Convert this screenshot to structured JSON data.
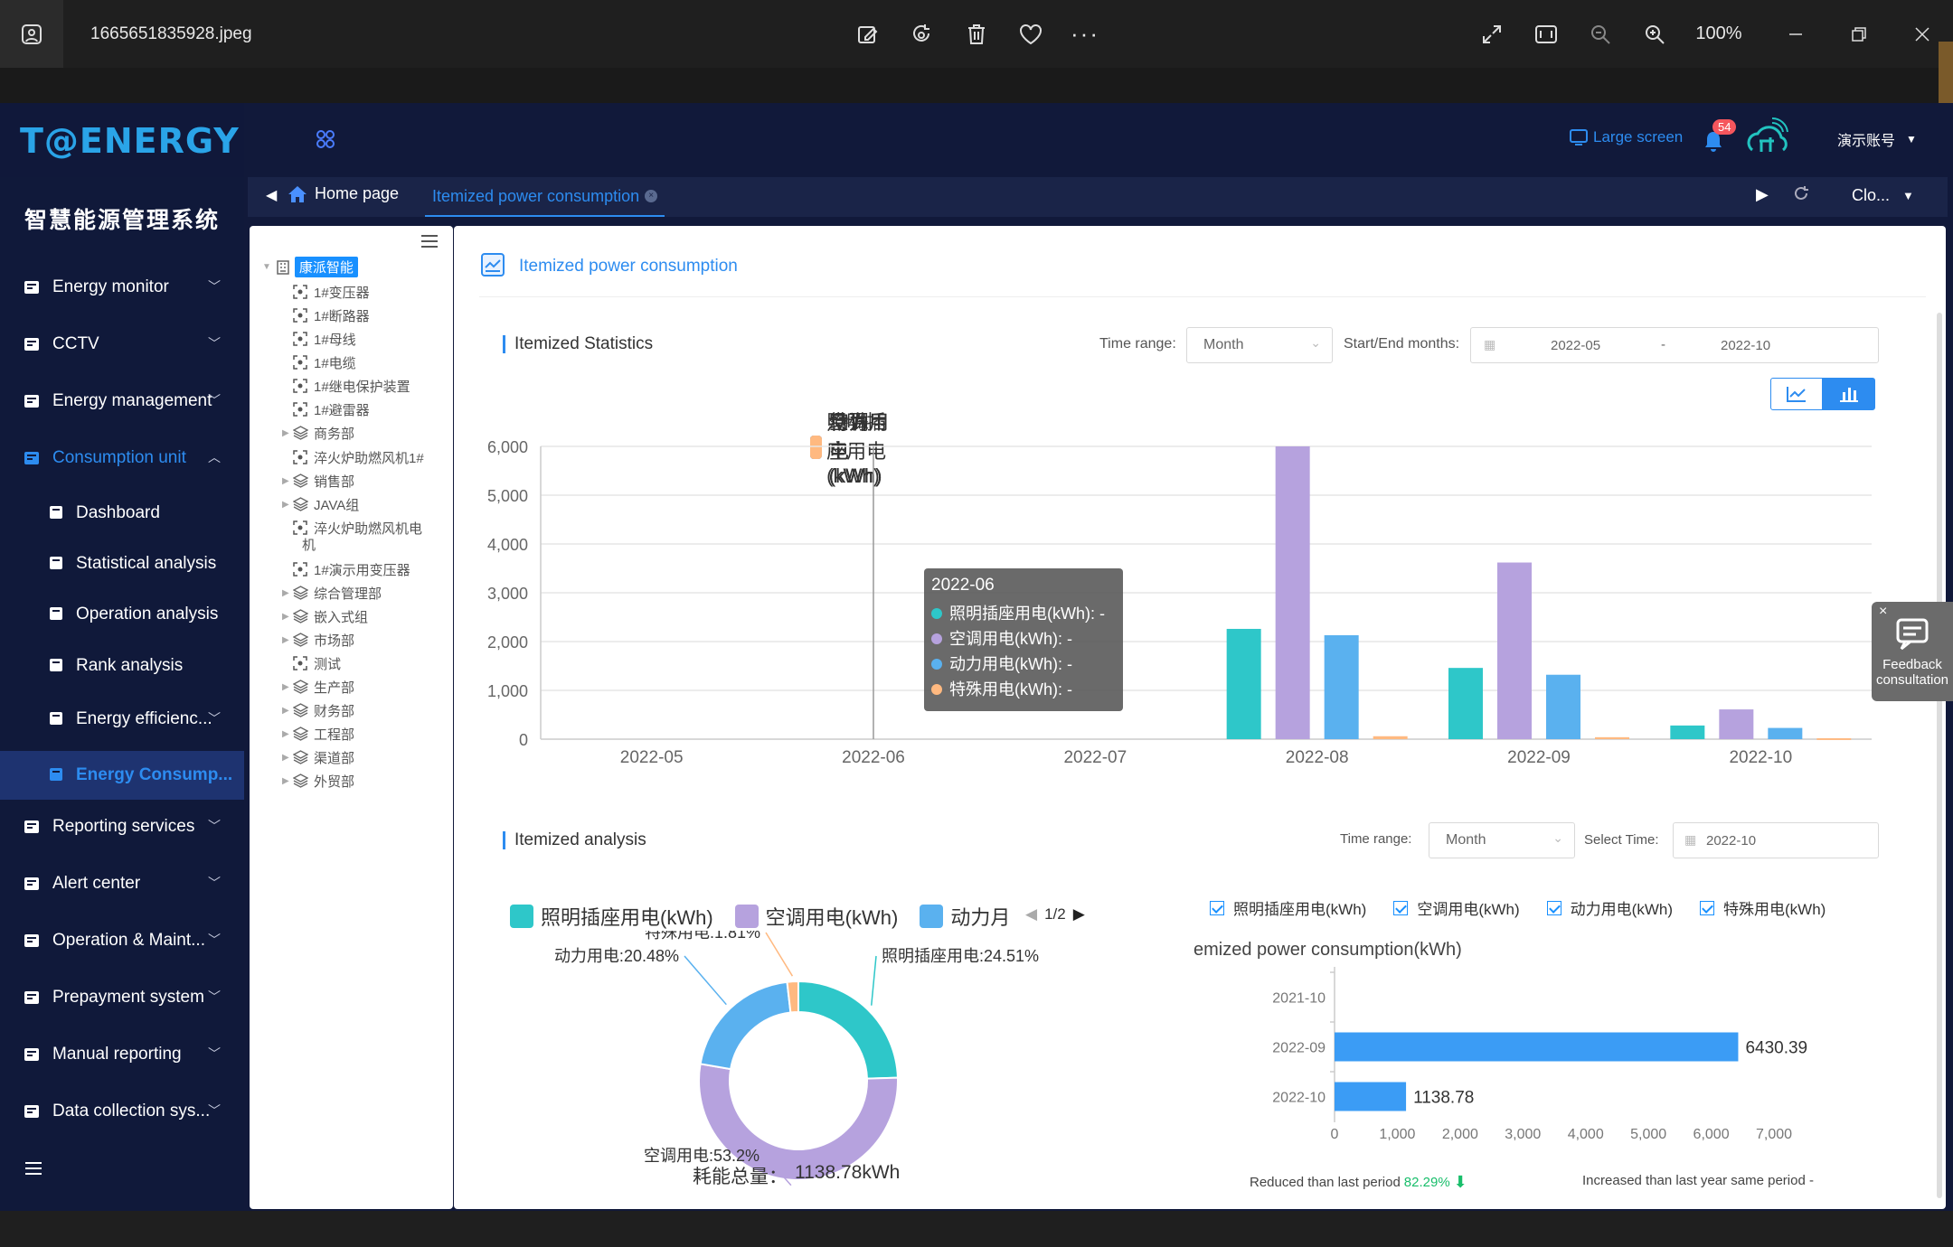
{
  "viewer": {
    "filename": "1665651835928.jpeg",
    "zoom": "100%",
    "icons": [
      "gallery-icon",
      "edit-image-icon",
      "rotate-icon",
      "delete-icon",
      "favorite-icon",
      "more-icon",
      "fullscreen-icon",
      "fit-icon",
      "zoom-out-icon",
      "zoom-in-icon",
      "minimize-icon",
      "restore-icon",
      "close-icon"
    ]
  },
  "app": {
    "logo_text": "T@ENERGY",
    "system_title": "智慧能源管理系统",
    "large_screen_label": "Large screen",
    "notification_count": "54",
    "account_label": "演示账号"
  },
  "sidebar": {
    "items": [
      {
        "label": "Energy monitor",
        "icon": "monitor-icon"
      },
      {
        "label": "CCTV",
        "icon": "camera-icon"
      },
      {
        "label": "Energy management",
        "icon": "chart-icon"
      },
      {
        "label": "Consumption unit",
        "icon": "unit-icon",
        "active": true
      },
      {
        "label": "Reporting services",
        "icon": "report-icon"
      },
      {
        "label": "Alert center",
        "icon": "alert-icon"
      },
      {
        "label": "Operation & Maint...",
        "icon": "maint-icon"
      },
      {
        "label": "Prepayment system",
        "icon": "prepay-icon"
      },
      {
        "label": "Manual reporting",
        "icon": "manual-icon"
      },
      {
        "label": "Data collection sys...",
        "icon": "data-icon"
      }
    ],
    "sub_items": [
      {
        "label": "Dashboard"
      },
      {
        "label": "Statistical analysis"
      },
      {
        "label": "Operation analysis"
      },
      {
        "label": "Rank analysis"
      },
      {
        "label": "Energy efficienc..."
      },
      {
        "label": "Energy Consump...",
        "active": true
      }
    ]
  },
  "tabs": {
    "home": "Home page",
    "active": "Itemized power consumption",
    "close_label": "Clo..."
  },
  "tree": {
    "root": "康派智能",
    "nodes": [
      {
        "label": "1#变压器",
        "type": "device"
      },
      {
        "label": "1#断路器",
        "type": "device"
      },
      {
        "label": "1#母线",
        "type": "device"
      },
      {
        "label": "1#电缆",
        "type": "device"
      },
      {
        "label": "1#继电保护装置",
        "type": "device"
      },
      {
        "label": "1#避雷器",
        "type": "device"
      },
      {
        "label": "商务部",
        "type": "group"
      },
      {
        "label": "淬火炉助燃风机1#",
        "type": "device"
      },
      {
        "label": "销售部",
        "type": "group"
      },
      {
        "label": "JAVA组",
        "type": "group"
      },
      {
        "label": "淬火炉助燃风机电",
        "type": "device"
      },
      {
        "label": "机",
        "type": "cont"
      },
      {
        "label": "1#演示用变压器",
        "type": "device"
      },
      {
        "label": "综合管理部",
        "type": "group"
      },
      {
        "label": "嵌入式组",
        "type": "group"
      },
      {
        "label": "市场部",
        "type": "group"
      },
      {
        "label": "测试",
        "type": "device"
      },
      {
        "label": "生产部",
        "type": "group"
      },
      {
        "label": "财务部",
        "type": "group"
      },
      {
        "label": "工程部",
        "type": "group"
      },
      {
        "label": "渠道部",
        "type": "group"
      },
      {
        "label": "外贸部",
        "type": "group"
      }
    ]
  },
  "page": {
    "title": "Itemized power consumption",
    "stats_title": "Itemized Statistics",
    "time_range_label": "Time range:",
    "time_range_value": "Month",
    "start_end_label": "Start/End months:",
    "start_month": "2022-05",
    "range_sep": "-",
    "end_month": "2022-10",
    "analysis_title": "Itemized analysis",
    "analysis_time_range_label": "Time range:",
    "analysis_time_range_value": "Month",
    "select_time_label": "Select Time:",
    "select_time_value": "2022-10",
    "feedback_label1": "Feedback",
    "feedback_label2": "consultation"
  },
  "chart_data": [
    {
      "type": "bar",
      "categories": [
        "2022-05",
        "2022-06",
        "2022-07",
        "2022-08",
        "2022-09",
        "2022-10"
      ],
      "series": [
        {
          "name": "照明插座用电(kWh)",
          "color": "#2ec7c9",
          "values": [
            null,
            null,
            null,
            2260,
            1460,
            280
          ]
        },
        {
          "name": "空调用电(kWh)",
          "color": "#b6a2de",
          "values": [
            null,
            null,
            null,
            6000,
            3620,
            610
          ]
        },
        {
          "name": "动力用电(kWh)",
          "color": "#5ab1ef",
          "values": [
            null,
            null,
            null,
            2130,
            1320,
            230
          ]
        },
        {
          "name": "特殊用电(kWh)",
          "color": "#ffb980",
          "values": [
            null,
            null,
            null,
            60,
            40,
            20
          ]
        }
      ],
      "ylim": [
        0,
        6000
      ],
      "yticks": [
        "0",
        "1,000",
        "2,000",
        "3,000",
        "4,000",
        "5,000",
        "6,000"
      ],
      "tooltip": {
        "title": "2022-06",
        "rows": [
          "照明插座用电(kWh): -",
          "空调用电(kWh): -",
          "动力用电(kWh): -",
          "特殊用电(kWh): -"
        ]
      }
    },
    {
      "type": "pie",
      "legend": [
        "照明插座用电(kWh)",
        "空调用电(kWh)",
        "动力月"
      ],
      "legend_page": "1/2",
      "slices": [
        {
          "name": "照明插座用电",
          "value": 24.51,
          "label": "照明插座用电:24.51%",
          "color": "#2ec7c9"
        },
        {
          "name": "空调用电",
          "value": 53.2,
          "label": "空调用电:53.2%",
          "color": "#b6a2de"
        },
        {
          "name": "动力用电",
          "value": 20.48,
          "label": "动力用电:20.48%",
          "color": "#5ab1ef"
        },
        {
          "name": "特殊用电",
          "value": 1.81,
          "label": "特殊用电:1.81%",
          "color": "#ffb980"
        }
      ],
      "total_label": "耗能总量：",
      "total_value": "1138.78kWh"
    },
    {
      "type": "bar",
      "orientation": "horizontal",
      "title": "emized power consumption(kWh)",
      "checkboxes": [
        "照明插座用电(kWh)",
        "空调用电(kWh)",
        "动力用电(kWh)",
        "特殊用电(kWh)"
      ],
      "categories": [
        "2021-10",
        "2022-09",
        "2022-10"
      ],
      "values": [
        null,
        6430.39,
        1138.78
      ],
      "value_labels": [
        "",
        "6430.39",
        "1138.78"
      ],
      "xlim": [
        0,
        7000
      ],
      "xticks": [
        "0",
        "1,000",
        "2,000",
        "3,000",
        "4,000",
        "5,000",
        "6,000",
        "7,000"
      ],
      "color": "#3b9cf5",
      "reduced_label": "Reduced than last period",
      "reduced_value": "82.29%",
      "increased_label": "Increased than last year same period -"
    }
  ]
}
